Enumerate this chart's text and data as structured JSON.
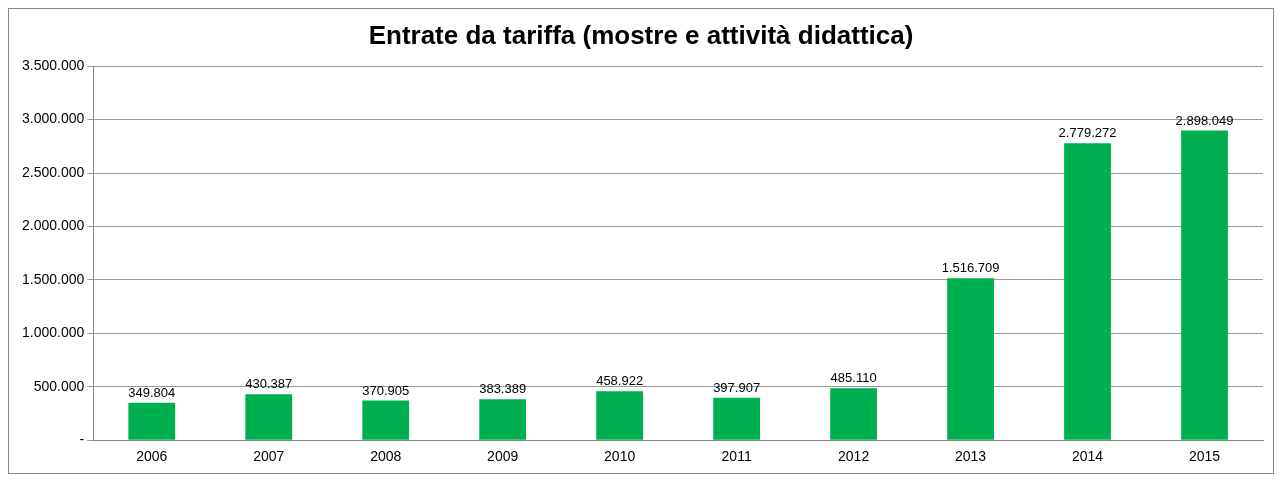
{
  "chart_data": {
    "type": "bar",
    "title": "Entrate da tariffa (mostre e attività didattica)",
    "categories": [
      "2006",
      "2007",
      "2008",
      "2009",
      "2010",
      "2011",
      "2012",
      "2013",
      "2014",
      "2015"
    ],
    "values": [
      349804,
      430387,
      370905,
      383389,
      458922,
      397907,
      485110,
      1516709,
      2779272,
      2898049
    ],
    "color": "#00b050",
    "ylim": [
      0,
      3500000
    ],
    "yticks": [
      {
        "value": 0,
        "label": "-"
      },
      {
        "value": 500000,
        "label": "500.000"
      },
      {
        "value": 1000000,
        "label": "1.000.000"
      },
      {
        "value": 1500000,
        "label": "1.500.000"
      },
      {
        "value": 2000000,
        "label": "2.000.000"
      },
      {
        "value": 2500000,
        "label": "2.500.000"
      },
      {
        "value": 3000000,
        "label": "3.000.000"
      },
      {
        "value": 3500000,
        "label": "3.500.000"
      }
    ],
    "value_labels": [
      "349.804",
      "430.387",
      "370.905",
      "383.389",
      "458.922",
      "397.907",
      "485.110",
      "1.516.709",
      "2.779.272",
      "2.898.049"
    ],
    "grid": "y",
    "legend": false
  }
}
